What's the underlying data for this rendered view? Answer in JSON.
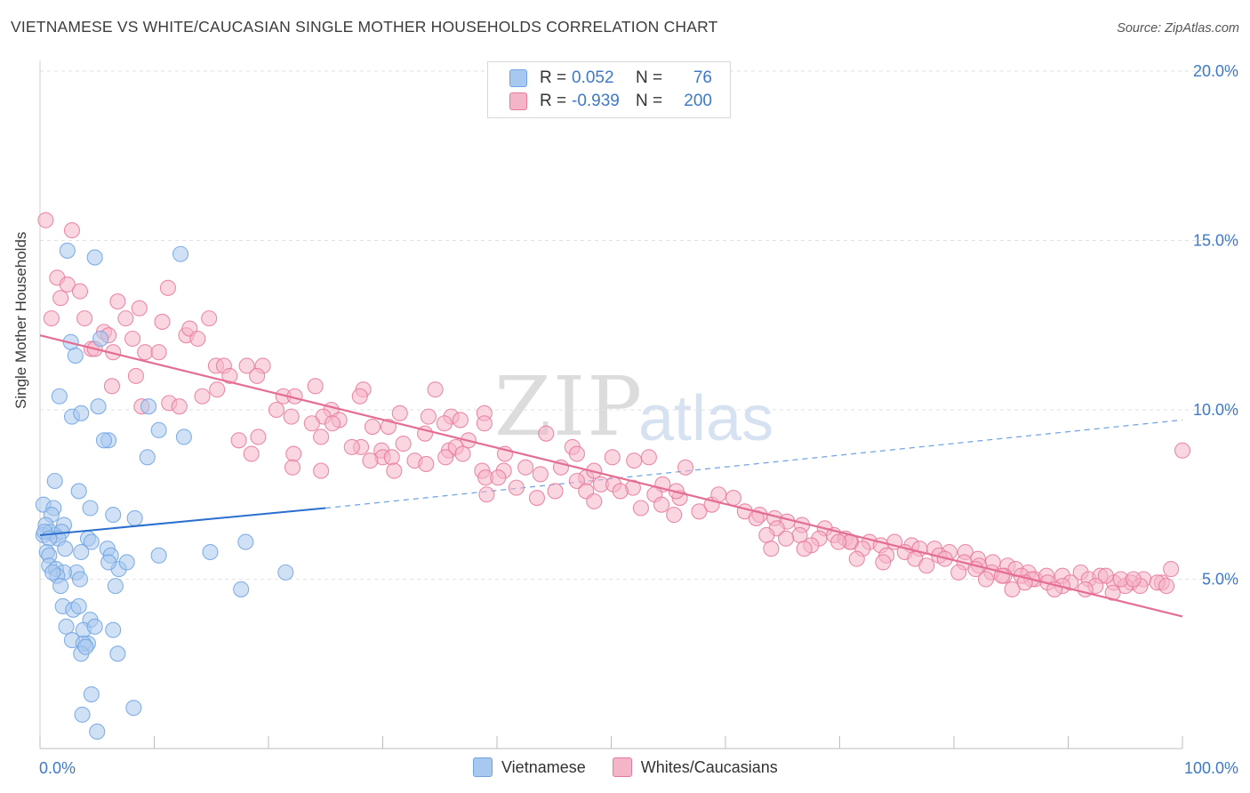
{
  "title": "VIETNAMESE VS WHITE/CAUCASIAN SINGLE MOTHER HOUSEHOLDS CORRELATION CHART",
  "source": "Source: ZipAtlas.com",
  "watermark": {
    "zip": "ZIP",
    "atlas": "atlas"
  },
  "legend": {
    "rows": [
      {
        "r_label": "R =",
        "r_value": "0.052",
        "n_label": "N =",
        "n_value": "76",
        "color": "#a9c8ef"
      },
      {
        "r_label": "R =",
        "r_value": "-0.939",
        "n_label": "N =",
        "n_value": "200",
        "color": "#f5b5c8"
      }
    ]
  },
  "bottom_legend": [
    {
      "label": "Vietnamese",
      "color": "#a9c8ef"
    },
    {
      "label": "Whites/Caucasians",
      "color": "#f5b5c8"
    }
  ],
  "chart_data": {
    "type": "scatter",
    "title": "VIETNAMESE VS WHITE/CAUCASIAN SINGLE MOTHER HOUSEHOLDS CORRELATION CHART",
    "xlabel": "",
    "ylabel": "Single Mother Households",
    "xlim": [
      0,
      100
    ],
    "ylim": [
      0,
      20
    ],
    "x_tick_labels": [
      {
        "value": 0,
        "label": "0.0%"
      },
      {
        "value": 100,
        "label": "100.0%"
      }
    ],
    "y_tick_labels": [
      {
        "value": 5,
        "label": "5.0%"
      },
      {
        "value": 10,
        "label": "10.0%"
      },
      {
        "value": 15,
        "label": "15.0%"
      },
      {
        "value": 20,
        "label": "20.0%"
      }
    ],
    "series": [
      {
        "name": "Vietnamese",
        "color": "#6fa3e3",
        "fill": "#a9c8ef",
        "trend": {
          "x": [
            0,
            25
          ],
          "y": [
            6.3,
            7.1
          ],
          "dashed_to_x": 100,
          "dashed_end_y": 9.7
        },
        "points": [
          [
            2.4,
            14.7
          ],
          [
            4.8,
            14.5
          ],
          [
            12.3,
            14.6
          ],
          [
            2.7,
            12.0
          ],
          [
            5.3,
            12.1
          ],
          [
            3.1,
            11.6
          ],
          [
            1.7,
            10.4
          ],
          [
            5.1,
            10.1
          ],
          [
            9.5,
            10.1
          ],
          [
            2.8,
            9.8
          ],
          [
            3.6,
            9.9
          ],
          [
            10.4,
            9.4
          ],
          [
            6.0,
            9.1
          ],
          [
            5.6,
            9.1
          ],
          [
            12.6,
            9.2
          ],
          [
            9.4,
            8.6
          ],
          [
            1.3,
            7.9
          ],
          [
            3.4,
            7.6
          ],
          [
            0.3,
            7.2
          ],
          [
            1.2,
            7.1
          ],
          [
            4.4,
            7.1
          ],
          [
            6.4,
            6.9
          ],
          [
            8.3,
            6.8
          ],
          [
            1.0,
            6.9
          ],
          [
            2.1,
            6.6
          ],
          [
            0.5,
            6.6
          ],
          [
            1.3,
            6.3
          ],
          [
            0.3,
            6.3
          ],
          [
            0.9,
            6.4
          ],
          [
            1.9,
            6.4
          ],
          [
            0.4,
            6.4
          ],
          [
            1.6,
            6.2
          ],
          [
            0.8,
            6.2
          ],
          [
            4.2,
            6.2
          ],
          [
            4.5,
            6.1
          ],
          [
            18.0,
            6.1
          ],
          [
            14.9,
            5.8
          ],
          [
            2.2,
            5.9
          ],
          [
            3.6,
            5.8
          ],
          [
            5.9,
            5.9
          ],
          [
            0.6,
            5.8
          ],
          [
            0.8,
            5.7
          ],
          [
            6.2,
            5.7
          ],
          [
            10.4,
            5.7
          ],
          [
            3.2,
            5.2
          ],
          [
            0.8,
            5.4
          ],
          [
            1.4,
            5.3
          ],
          [
            2.1,
            5.2
          ],
          [
            6.9,
            5.3
          ],
          [
            6.0,
            5.5
          ],
          [
            7.6,
            5.5
          ],
          [
            1.5,
            5.1
          ],
          [
            1.1,
            5.2
          ],
          [
            21.5,
            5.2
          ],
          [
            1.8,
            4.8
          ],
          [
            3.5,
            5.0
          ],
          [
            6.6,
            4.8
          ],
          [
            17.6,
            4.7
          ],
          [
            2.0,
            4.2
          ],
          [
            2.9,
            4.1
          ],
          [
            3.4,
            4.2
          ],
          [
            4.4,
            3.8
          ],
          [
            2.3,
            3.6
          ],
          [
            3.8,
            3.5
          ],
          [
            4.8,
            3.6
          ],
          [
            6.4,
            3.5
          ],
          [
            2.8,
            3.2
          ],
          [
            4.2,
            3.1
          ],
          [
            3.8,
            3.1
          ],
          [
            3.6,
            2.8
          ],
          [
            6.8,
            2.8
          ],
          [
            4.5,
            1.6
          ],
          [
            8.2,
            1.2
          ],
          [
            3.7,
            1.0
          ],
          [
            5.0,
            0.5
          ],
          [
            4.0,
            3.0
          ]
        ]
      },
      {
        "name": "Whites/Caucasians",
        "color": "#e8799a",
        "fill": "#f5b5c8",
        "trend": {
          "x": [
            0,
            100
          ],
          "y": [
            12.2,
            3.9
          ]
        },
        "points": [
          [
            0.5,
            15.6
          ],
          [
            2.8,
            15.3
          ],
          [
            1.5,
            13.9
          ],
          [
            2.4,
            13.7
          ],
          [
            3.5,
            13.5
          ],
          [
            1.8,
            13.3
          ],
          [
            11.2,
            13.6
          ],
          [
            6.8,
            13.2
          ],
          [
            8.7,
            13.0
          ],
          [
            1.0,
            12.7
          ],
          [
            3.9,
            12.7
          ],
          [
            7.5,
            12.7
          ],
          [
            10.7,
            12.6
          ],
          [
            14.8,
            12.7
          ],
          [
            12.8,
            12.2
          ],
          [
            13.1,
            12.4
          ],
          [
            5.6,
            12.3
          ],
          [
            6.0,
            12.2
          ],
          [
            8.1,
            12.1
          ],
          [
            13.8,
            12.1
          ],
          [
            4.5,
            11.8
          ],
          [
            4.8,
            11.8
          ],
          [
            6.4,
            11.7
          ],
          [
            9.2,
            11.7
          ],
          [
            10.4,
            11.7
          ],
          [
            15.4,
            11.3
          ],
          [
            16.1,
            11.3
          ],
          [
            18.1,
            11.3
          ],
          [
            19.5,
            11.3
          ],
          [
            16.6,
            11.0
          ],
          [
            19.0,
            11.0
          ],
          [
            8.4,
            11.0
          ],
          [
            6.3,
            10.7
          ],
          [
            15.5,
            10.6
          ],
          [
            24.1,
            10.7
          ],
          [
            28.3,
            10.6
          ],
          [
            21.3,
            10.4
          ],
          [
            22.3,
            10.4
          ],
          [
            28.0,
            10.4
          ],
          [
            34.6,
            10.6
          ],
          [
            11.3,
            10.2
          ],
          [
            14.2,
            10.4
          ],
          [
            12.2,
            10.1
          ],
          [
            8.9,
            10.1
          ],
          [
            20.7,
            10.0
          ],
          [
            25.5,
            10.0
          ],
          [
            22.0,
            9.8
          ],
          [
            24.8,
            9.8
          ],
          [
            26.2,
            9.7
          ],
          [
            31.5,
            9.9
          ],
          [
            34.0,
            9.8
          ],
          [
            38.9,
            9.9
          ],
          [
            36.0,
            9.8
          ],
          [
            23.8,
            9.6
          ],
          [
            25.6,
            9.6
          ],
          [
            29.1,
            9.5
          ],
          [
            35.4,
            9.6
          ],
          [
            36.8,
            9.7
          ],
          [
            38.9,
            9.6
          ],
          [
            30.5,
            9.5
          ],
          [
            33.7,
            9.3
          ],
          [
            19.1,
            9.2
          ],
          [
            24.6,
            9.2
          ],
          [
            31.8,
            9.0
          ],
          [
            37.5,
            9.1
          ],
          [
            44.3,
            9.3
          ],
          [
            28.1,
            8.9
          ],
          [
            29.9,
            8.8
          ],
          [
            35.8,
            8.8
          ],
          [
            22.2,
            8.7
          ],
          [
            18.5,
            8.7
          ],
          [
            17.4,
            9.1
          ],
          [
            27.3,
            8.9
          ],
          [
            30.0,
            8.6
          ],
          [
            30.8,
            8.6
          ],
          [
            28.9,
            8.5
          ],
          [
            32.8,
            8.5
          ],
          [
            33.8,
            8.4
          ],
          [
            35.5,
            8.6
          ],
          [
            36.4,
            8.9
          ],
          [
            37.0,
            8.7
          ],
          [
            40.7,
            8.7
          ],
          [
            46.6,
            8.9
          ],
          [
            47.0,
            8.7
          ],
          [
            50.1,
            8.6
          ],
          [
            53.3,
            8.6
          ],
          [
            52.0,
            8.5
          ],
          [
            22.1,
            8.3
          ],
          [
            24.6,
            8.2
          ],
          [
            31.0,
            8.2
          ],
          [
            38.7,
            8.2
          ],
          [
            40.6,
            8.2
          ],
          [
            42.5,
            8.3
          ],
          [
            43.8,
            8.1
          ],
          [
            45.6,
            8.3
          ],
          [
            47.8,
            8.0
          ],
          [
            48.5,
            8.2
          ],
          [
            56.5,
            8.3
          ],
          [
            39.0,
            8.0
          ],
          [
            40.1,
            8.0
          ],
          [
            41.7,
            7.7
          ],
          [
            47.0,
            7.9
          ],
          [
            49.1,
            7.8
          ],
          [
            50.2,
            7.8
          ],
          [
            51.9,
            7.7
          ],
          [
            54.5,
            7.8
          ],
          [
            56.0,
            7.4
          ],
          [
            50.8,
            7.6
          ],
          [
            53.8,
            7.5
          ],
          [
            55.7,
            7.6
          ],
          [
            39.1,
            7.5
          ],
          [
            43.5,
            7.4
          ],
          [
            45.1,
            7.6
          ],
          [
            47.8,
            7.6
          ],
          [
            48.5,
            7.3
          ],
          [
            52.6,
            7.1
          ],
          [
            54.4,
            7.2
          ],
          [
            55.5,
            6.9
          ],
          [
            57.7,
            7.0
          ],
          [
            58.8,
            7.2
          ],
          [
            59.4,
            7.5
          ],
          [
            60.7,
            7.4
          ],
          [
            61.7,
            7.0
          ],
          [
            63.0,
            6.9
          ],
          [
            64.3,
            6.8
          ],
          [
            65.4,
            6.7
          ],
          [
            66.7,
            6.6
          ],
          [
            62.7,
            6.8
          ],
          [
            64.5,
            6.5
          ],
          [
            66.5,
            6.3
          ],
          [
            68.7,
            6.5
          ],
          [
            69.5,
            6.3
          ],
          [
            70.5,
            6.2
          ],
          [
            71.0,
            6.1
          ],
          [
            72.6,
            6.1
          ],
          [
            73.6,
            6.0
          ],
          [
            74.8,
            6.1
          ],
          [
            76.3,
            6.0
          ],
          [
            77.0,
            5.9
          ],
          [
            78.3,
            5.9
          ],
          [
            79.6,
            5.8
          ],
          [
            81.0,
            5.8
          ],
          [
            82.1,
            5.6
          ],
          [
            83.4,
            5.5
          ],
          [
            84.7,
            5.4
          ],
          [
            85.4,
            5.3
          ],
          [
            86.5,
            5.2
          ],
          [
            87.1,
            5.0
          ],
          [
            88.1,
            5.1
          ],
          [
            89.5,
            5.1
          ],
          [
            91.1,
            5.2
          ],
          [
            91.8,
            5.0
          ],
          [
            92.8,
            5.1
          ],
          [
            94.0,
            4.9
          ],
          [
            95.5,
            4.9
          ],
          [
            96.6,
            5.0
          ],
          [
            98.2,
            4.9
          ],
          [
            99.0,
            5.3
          ],
          [
            100.0,
            8.8
          ],
          [
            68.2,
            6.2
          ],
          [
            70.9,
            6.1
          ],
          [
            75.7,
            5.8
          ],
          [
            78.7,
            5.7
          ],
          [
            80.9,
            5.5
          ],
          [
            83.3,
            5.2
          ],
          [
            85.9,
            5.1
          ],
          [
            88.2,
            4.9
          ],
          [
            90.2,
            4.9
          ],
          [
            93.3,
            5.1
          ],
          [
            95.0,
            4.8
          ],
          [
            97.8,
            4.9
          ],
          [
            82.2,
            5.4
          ],
          [
            84.4,
            5.1
          ],
          [
            86.8,
            5.0
          ],
          [
            89.5,
            4.8
          ],
          [
            92.4,
            4.8
          ],
          [
            94.6,
            5.0
          ],
          [
            96.3,
            4.8
          ],
          [
            63.6,
            6.3
          ],
          [
            65.3,
            6.2
          ],
          [
            67.5,
            6.0
          ],
          [
            69.9,
            6.1
          ],
          [
            72.0,
            5.9
          ],
          [
            74.1,
            5.7
          ],
          [
            76.6,
            5.6
          ],
          [
            79.2,
            5.6
          ],
          [
            81.9,
            5.3
          ],
          [
            84.2,
            5.1
          ],
          [
            86.2,
            4.9
          ],
          [
            88.8,
            4.7
          ],
          [
            91.5,
            4.7
          ],
          [
            93.9,
            4.6
          ],
          [
            95.7,
            5.0
          ],
          [
            98.6,
            4.8
          ],
          [
            64.0,
            5.9
          ],
          [
            66.9,
            5.9
          ],
          [
            71.5,
            5.6
          ],
          [
            73.8,
            5.5
          ],
          [
            77.6,
            5.4
          ],
          [
            80.4,
            5.2
          ],
          [
            82.8,
            5.0
          ],
          [
            85.1,
            4.7
          ]
        ]
      }
    ]
  }
}
